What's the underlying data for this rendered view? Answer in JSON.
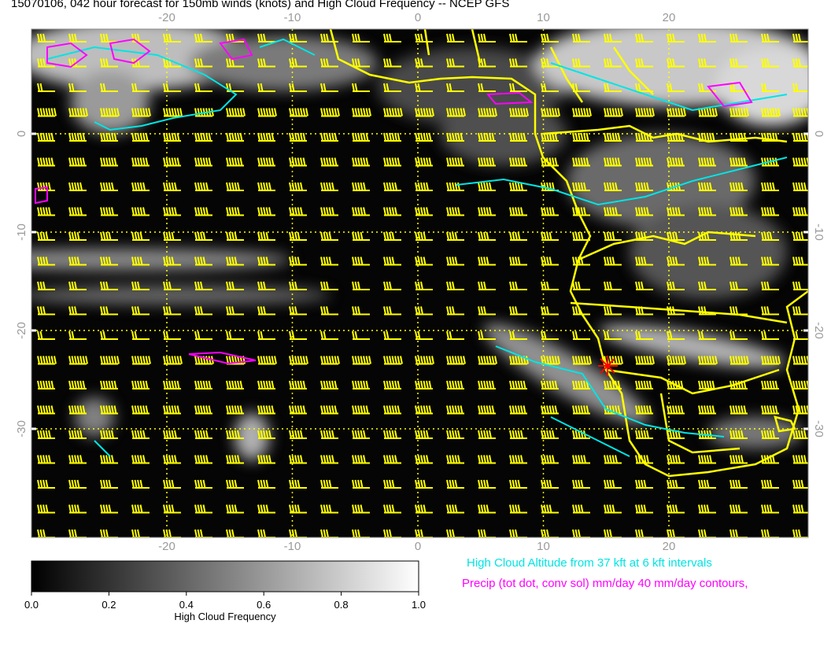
{
  "title": "15070106, 042 hour forecast for 150mb winds (knots) and High Cloud Frequency -- NCEP GFS",
  "map": {
    "lon_ticks": [
      -20,
      -10,
      0,
      10,
      20
    ],
    "lat_ticks": [
      0,
      -10,
      -20,
      -30
    ]
  },
  "colorbar": {
    "label": "High Cloud Frequency",
    "ticks": [
      {
        "value": 0,
        "label": "0.0"
      },
      {
        "value": 0.2,
        "label": "0.2"
      },
      {
        "value": 0.4,
        "label": "0.4"
      },
      {
        "value": 0.6,
        "label": "0.6"
      },
      {
        "value": 0.8,
        "label": "0.8"
      },
      {
        "value": 1,
        "label": "1.0"
      }
    ]
  },
  "legend": [
    {
      "text": "High Cloud Altitude from 37 kft at 6 kft intervals",
      "color": "#00e5e5"
    },
    {
      "text": "Precip (tot dot, conv sol) mm/day 40 mm/day contours,",
      "color": "#ff00ff"
    }
  ]
}
